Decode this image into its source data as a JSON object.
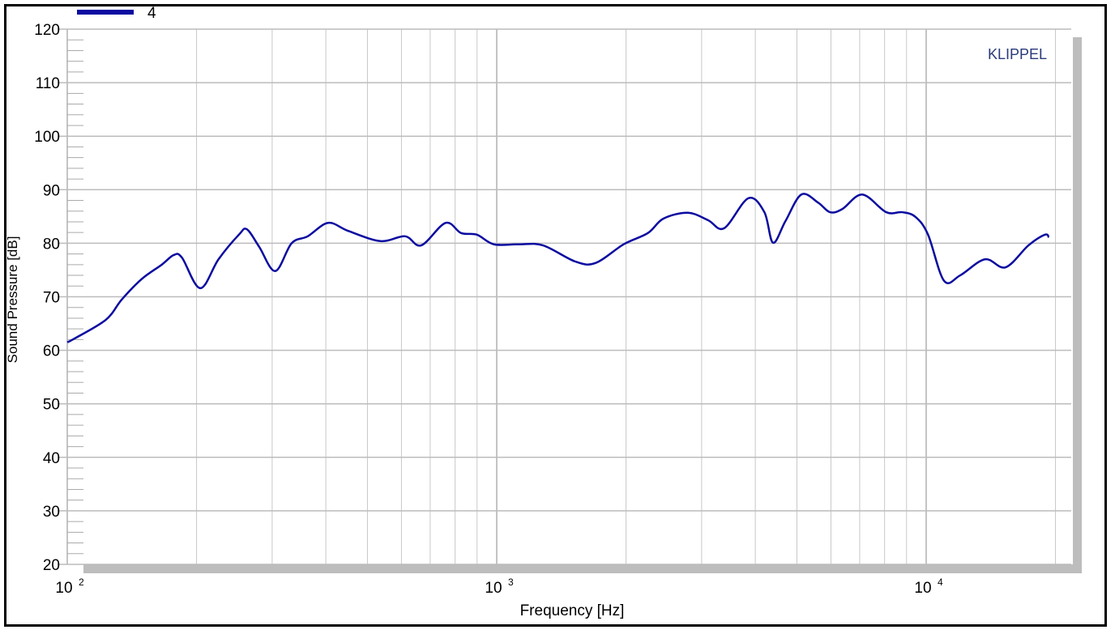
{
  "chart_data": {
    "type": "line",
    "xlabel": "Frequency  [Hz]",
    "ylabel": "Sound Pressure  [dB]",
    "x_scale": "log",
    "xlim": [
      100,
      21600
    ],
    "ylim": [
      20,
      120
    ],
    "grid": true,
    "x_ticks": [
      {
        "value": 100,
        "base": "10",
        "exp": "2"
      },
      {
        "value": 1000,
        "base": "10",
        "exp": "3"
      },
      {
        "value": 10000,
        "base": "10",
        "exp": "4"
      }
    ],
    "y_ticks": [
      "20",
      "30",
      "40",
      "50",
      "60",
      "70",
      "80",
      "90",
      "100",
      "110",
      "120"
    ],
    "brand": "KLIPPEL",
    "legend_position": "top-left",
    "series": [
      {
        "name": "4",
        "color": "#0a0aa0",
        "x": [
          100,
          104,
          123,
          134,
          149,
          166,
          177,
          185,
          204,
          225,
          251,
          262,
          280,
          305,
          333,
          363,
          405,
          451,
          536,
          612,
          667,
          760,
          826,
          899,
          985,
          1127,
          1282,
          1522,
          1698,
          1975,
          2249,
          2444,
          2787,
          3106,
          3385,
          3853,
          4200,
          4399,
          4700,
          5120,
          5600,
          5970,
          6380,
          7100,
          8070,
          8800,
          9450,
          10100,
          11000,
          12000,
          13700,
          15300,
          17300,
          18900,
          19300
        ],
        "y": [
          61.5,
          62.2,
          65.7,
          69.5,
          73.3,
          76,
          77.8,
          77.3,
          71.6,
          77,
          81.6,
          82.6,
          79.3,
          74.8,
          80,
          81.3,
          83.8,
          82.3,
          80.4,
          81.3,
          79.6,
          83.8,
          81.9,
          81.6,
          79.8,
          79.8,
          79.6,
          76.6,
          76.3,
          79.8,
          81.9,
          84.6,
          85.7,
          84.3,
          82.8,
          88.4,
          85.8,
          80.1,
          84.1,
          89.1,
          87.6,
          85.8,
          86.4,
          89.1,
          85.8,
          85.8,
          84.9,
          81.6,
          73,
          74,
          77,
          75.5,
          79.6,
          81.6,
          81.1
        ]
      }
    ]
  }
}
